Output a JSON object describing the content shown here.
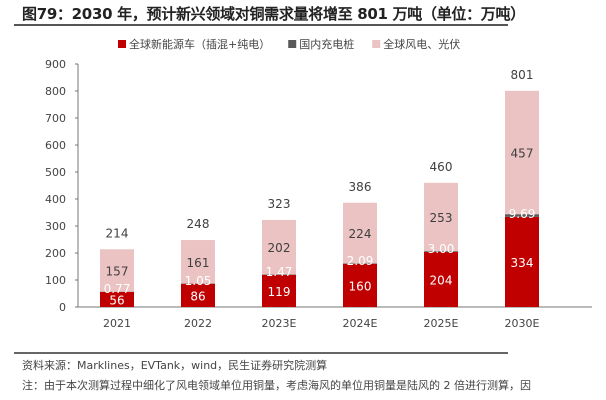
{
  "title": "图79：2030 年，预计新兴领域对铜需求量将增至 801 万吨（单位：万吨）",
  "chart_data": {
    "type": "bar",
    "stacked": true,
    "categories": [
      "2021",
      "2022",
      "2023E",
      "2024E",
      "2025E",
      "2030E"
    ],
    "series": [
      {
        "name": "全球新能源车（插混+纯电）",
        "color": "#C00000",
        "values": [
          56,
          86,
          119,
          160,
          204,
          334
        ],
        "labels": [
          "56",
          "86",
          "119",
          "160",
          "204",
          "334"
        ]
      },
      {
        "name": "国内充电桩",
        "color": "#595959",
        "values": [
          0.77,
          1.05,
          1.47,
          2.09,
          3.0,
          9.69
        ],
        "labels": [
          "0.77",
          "1.05",
          "1.47",
          "2.09",
          "3.00",
          "9.69"
        ]
      },
      {
        "name": "全球风电、光伏",
        "color": "#EBC3C3",
        "values": [
          157,
          161,
          202,
          224,
          253,
          457
        ],
        "labels": [
          "157",
          "161",
          "202",
          "224",
          "253",
          "457"
        ]
      }
    ],
    "totals": [
      "214",
      "248",
      "323",
      "386",
      "460",
      "801"
    ],
    "ylim": [
      0,
      900
    ],
    "yticks": [
      "0",
      "100",
      "200",
      "300",
      "400",
      "500",
      "600",
      "700",
      "800",
      "900"
    ],
    "grid": false,
    "legend": "top-center"
  },
  "footer": {
    "source": "资料来源：Marklines，EVTank，wind，民生证券研究院测算",
    "note": "注：由于本次测算过程中细化了风电领域单位用铜量，考虑海风的单位用铜量是陆风的 2 倍进行测算，因"
  }
}
